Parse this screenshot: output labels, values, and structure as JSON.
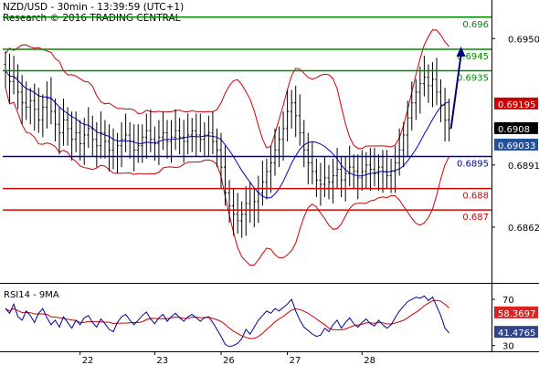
{
  "header": {
    "title": "NZD/USD - 30min - 13:39:59 (UTC+1)",
    "credit": "Research © 2016 TRADING CENTRAL"
  },
  "colors": {
    "support": "#dd0000",
    "resistance": "#008800",
    "pivot": "#0000aa",
    "price": "#000000",
    "bollinger": "#cc0000",
    "ma": "#0000cc",
    "arrow": "#000080",
    "rsi": "#000099",
    "rsi_ma": "#cc0000",
    "tag_current": "#000000",
    "tag_ma": "#2050a0",
    "tag_bb": "#cc0000",
    "tag_rsi_ma": "#dd2222",
    "tag_rsi": "#334488"
  },
  "chart_data": [
    {
      "type": "candlestick",
      "instrument": "NZD/USD",
      "timeframe": "30min",
      "ylim": [
        0.6836,
        0.6968
      ],
      "y_ticks": [
        0.695,
        0.6891,
        0.6862
      ],
      "x_ticks": [
        "22",
        "23",
        "26",
        "27",
        "28"
      ],
      "levels": [
        {
          "label": "0.696",
          "value": 0.696,
          "kind": "resistance"
        },
        {
          "label": "0.6945",
          "value": 0.6945,
          "kind": "resistance"
        },
        {
          "label": "0.6935",
          "value": 0.6935,
          "kind": "resistance"
        },
        {
          "label": "0.6895",
          "value": 0.6895,
          "kind": "pivot"
        },
        {
          "label": "0.688",
          "value": 0.688,
          "kind": "support"
        },
        {
          "label": "0.687",
          "value": 0.687,
          "kind": "support"
        }
      ],
      "tags": [
        {
          "label": "0.69195",
          "value": 0.69195,
          "kind": "bb"
        },
        {
          "label": "0.6908",
          "value": 0.6908,
          "kind": "current"
        },
        {
          "label": "0.69033",
          "value": 0.69033,
          "kind": "ma"
        }
      ],
      "close": [
        0.6935,
        0.693,
        0.6932,
        0.6925,
        0.692,
        0.6918,
        0.6921,
        0.6917,
        0.6912,
        0.6918,
        0.6922,
        0.6916,
        0.691,
        0.6906,
        0.6912,
        0.6908,
        0.6903,
        0.6906,
        0.6901,
        0.6905,
        0.6908,
        0.6903,
        0.69,
        0.6906,
        0.6902,
        0.6898,
        0.6895,
        0.69,
        0.6903,
        0.6905,
        0.6902,
        0.6898,
        0.69,
        0.6904,
        0.6907,
        0.6903,
        0.6901,
        0.6904,
        0.6906,
        0.6902,
        0.6904,
        0.6907,
        0.6904,
        0.6902,
        0.6905,
        0.6907,
        0.6905,
        0.6903,
        0.6905,
        0.6906,
        0.6902,
        0.6898,
        0.689,
        0.6878,
        0.6872,
        0.6868,
        0.6865,
        0.6868,
        0.6873,
        0.687,
        0.6874,
        0.6878,
        0.6883,
        0.6888,
        0.6892,
        0.6898,
        0.6903,
        0.6908,
        0.6916,
        0.692,
        0.6914,
        0.6906,
        0.6898,
        0.6892,
        0.6888,
        0.6884,
        0.6882,
        0.6885,
        0.6883,
        0.6886,
        0.6889,
        0.6884,
        0.6887,
        0.689,
        0.6888,
        0.6885,
        0.6888,
        0.6891,
        0.6889,
        0.6887,
        0.689,
        0.6888,
        0.6886,
        0.6888,
        0.6892,
        0.6898,
        0.6905,
        0.6913,
        0.692,
        0.6925,
        0.6929,
        0.6932,
        0.6928,
        0.6931,
        0.6925,
        0.6919,
        0.6912,
        0.6908
      ]
    },
    {
      "type": "line",
      "indicator": "RSI14 - 9MA",
      "label": "RSI14 - 9MA",
      "ylim": [
        25,
        78
      ],
      "y_ticks": [
        70,
        30
      ],
      "tags": [
        {
          "label": "58.3697",
          "value": 58.3697,
          "kind": "rsi_ma"
        },
        {
          "label": "41.4765",
          "value": 41.4765,
          "kind": "rsi"
        }
      ],
      "rsi": [
        62,
        58,
        66,
        55,
        52,
        60,
        56,
        50,
        58,
        62,
        54,
        48,
        52,
        46,
        55,
        50,
        45,
        52,
        48,
        54,
        56,
        50,
        46,
        53,
        49,
        44,
        42,
        50,
        55,
        57,
        52,
        48,
        52,
        56,
        59,
        53,
        49,
        54,
        57,
        51,
        55,
        58,
        54,
        51,
        55,
        57,
        54,
        51,
        54,
        55,
        50,
        44,
        38,
        31,
        29,
        30,
        32,
        36,
        44,
        40,
        46,
        52,
        56,
        60,
        58,
        62,
        60,
        63,
        66,
        70,
        60,
        52,
        46,
        43,
        40,
        38,
        39,
        45,
        42,
        48,
        52,
        45,
        50,
        54,
        49,
        46,
        50,
        53,
        49,
        47,
        52,
        48,
        45,
        48,
        54,
        60,
        64,
        68,
        70,
        72,
        71,
        73,
        69,
        72,
        64,
        56,
        45,
        41
      ]
    }
  ]
}
